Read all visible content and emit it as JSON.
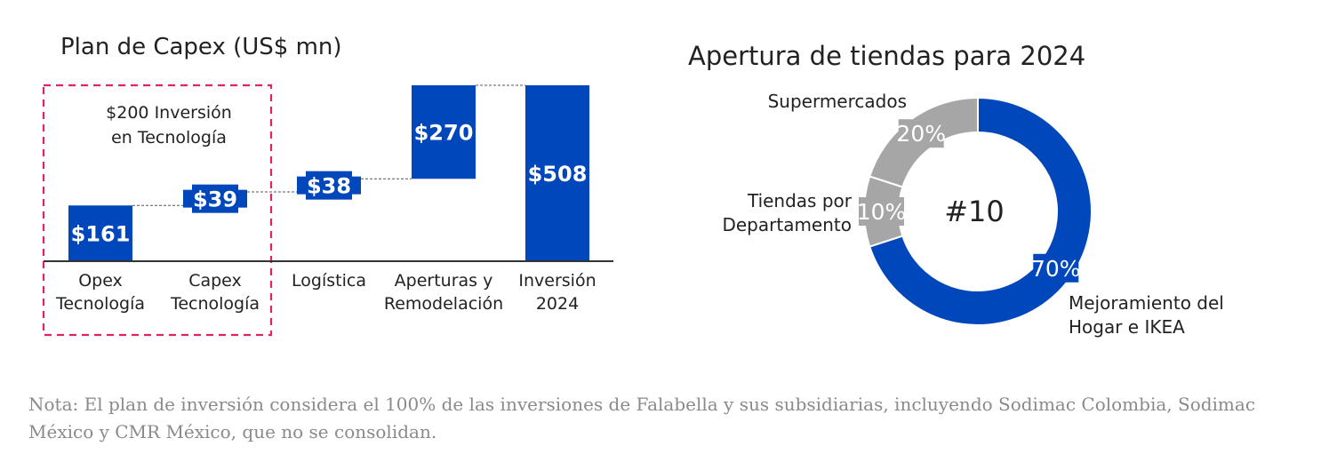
{
  "chart_data": [
    {
      "type": "waterfall",
      "title": "Plan de Capex (US$ mn)",
      "categories": [
        [
          "Opex",
          "Tecnología"
        ],
        [
          "Capex",
          "Tecnología"
        ],
        [
          "Logística"
        ],
        [
          "Aperturas y",
          "Remodelación"
        ],
        [
          "Inversión",
          "2024"
        ]
      ],
      "values": [
        161,
        39,
        38,
        270,
        508
      ],
      "value_labels": [
        "$161",
        "$39",
        "$38",
        "$270",
        "$508"
      ],
      "bar_kind": [
        "increment",
        "increment",
        "increment",
        "increment",
        "total"
      ],
      "bar_style": [
        "bar",
        "band",
        "band",
        "bar",
        "bar"
      ],
      "bar_color": "#0047BB",
      "group_annotation": {
        "lines": [
          "$200 Inversión",
          "en Tecnología"
        ],
        "covers": [
          0,
          1
        ],
        "border_color": "#E0245E"
      },
      "ylim": [
        0,
        508
      ]
    },
    {
      "type": "pie",
      "variant": "donut",
      "title": "Apertura de tiendas para 2024",
      "center_label": "#10",
      "slices": [
        {
          "name": [
            "Mejoramiento del",
            "Hogar e IKEA"
          ],
          "value": 70,
          "label": "70%",
          "color": "#0047BB"
        },
        {
          "name": [
            "Tiendas por",
            "Departamento"
          ],
          "value": 10,
          "label": "10%",
          "color": "#a6a6a6"
        },
        {
          "name": [
            "Supermercados"
          ],
          "value": 20,
          "label": "20%",
          "color": "#a6a6a6"
        }
      ]
    }
  ],
  "note": "Nota: El plan de inversión considera el 100% de las inversiones de Falabella y sus subsidiarias, incluyendo Sodimac Colombia, Sodimac México y CMR México, que no se consolidan."
}
